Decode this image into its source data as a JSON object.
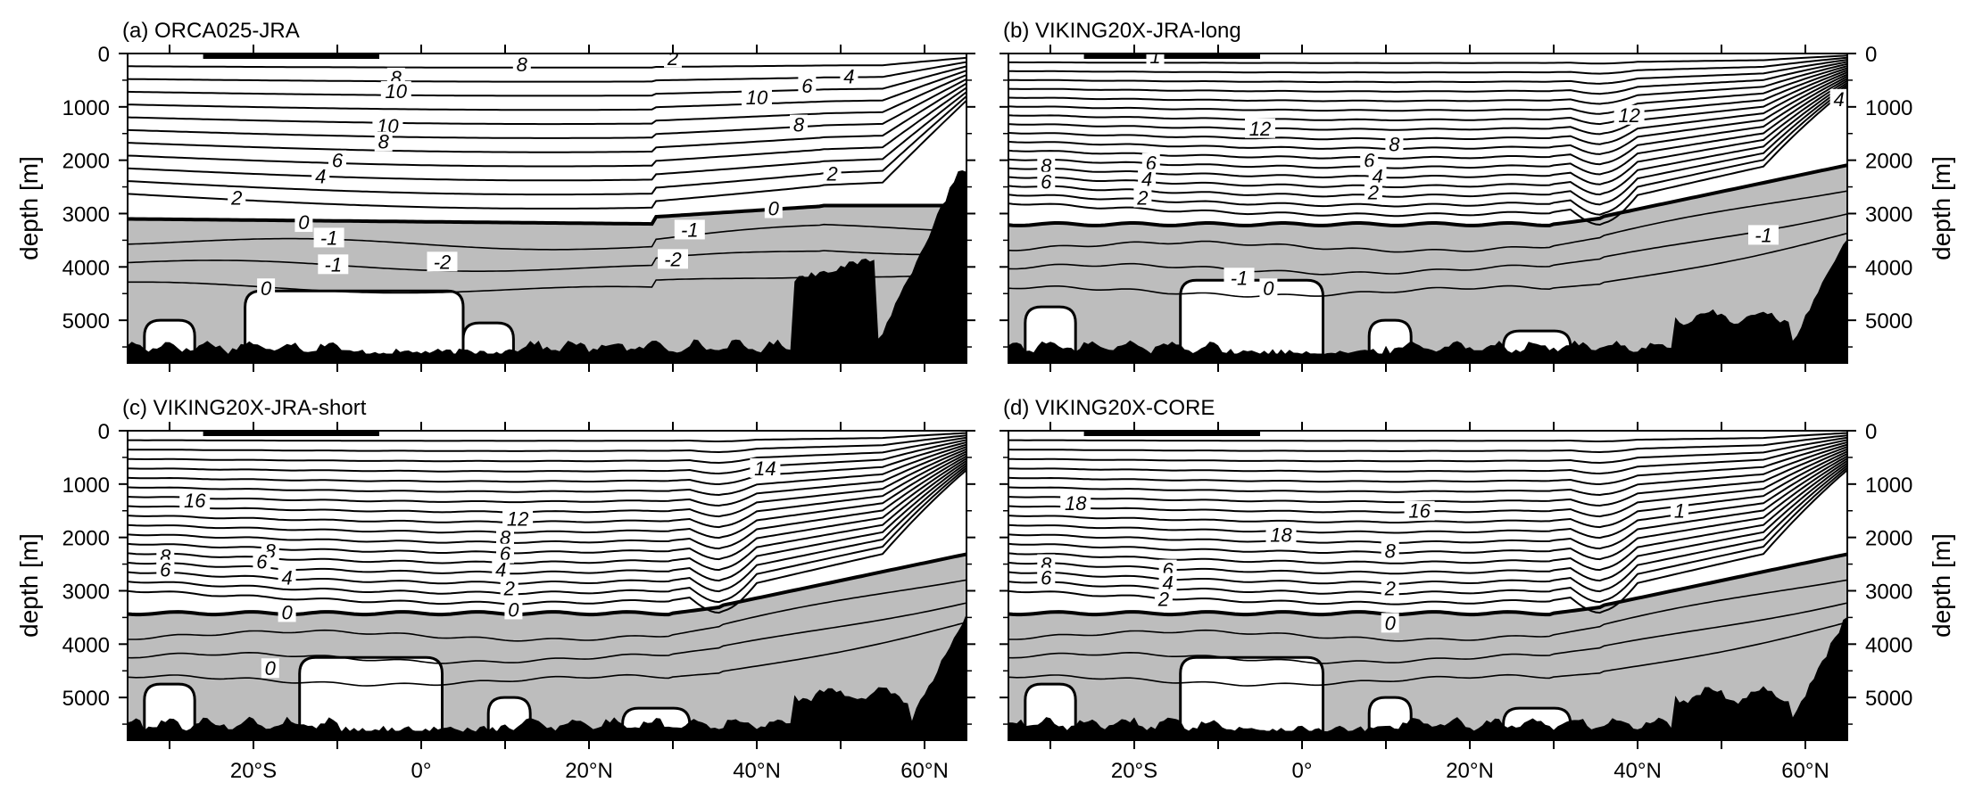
{
  "chart_data": [
    {
      "type": "contour",
      "title": "(a) ORCA025-JRA",
      "ylabel": "depth [m]",
      "ylabel_side": "left",
      "xlim": [
        -35,
        65
      ],
      "ylim": [
        5800,
        0
      ],
      "y_ticks": [
        0,
        1000,
        2000,
        3000,
        4000,
        5000
      ],
      "x_ticks": [],
      "x_tick_labels": [],
      "shaded_below_contour": 0,
      "contour_labels": [
        {
          "text": "2",
          "lat": 30,
          "depth": 80
        },
        {
          "text": "8",
          "lat": 12,
          "depth": 200
        },
        {
          "text": "8",
          "lat": -3,
          "depth": 450
        },
        {
          "text": "4",
          "lat": 51,
          "depth": 430
        },
        {
          "text": "6",
          "lat": 46,
          "depth": 600
        },
        {
          "text": "10",
          "lat": -3,
          "depth": 700
        },
        {
          "text": "10",
          "lat": 40,
          "depth": 820
        },
        {
          "text": "8",
          "lat": 45,
          "depth": 1330
        },
        {
          "text": "10",
          "lat": -4,
          "depth": 1350
        },
        {
          "text": "8",
          "lat": -4.5,
          "depth": 1650
        },
        {
          "text": "6",
          "lat": -10,
          "depth": 2000
        },
        {
          "text": "4",
          "lat": -12,
          "depth": 2300
        },
        {
          "text": "2",
          "lat": 49,
          "depth": 2250
        },
        {
          "text": "2",
          "lat": -22,
          "depth": 2700
        },
        {
          "text": "0",
          "lat": 42,
          "depth": 2900
        },
        {
          "text": "0",
          "lat": -14,
          "depth": 3160
        },
        {
          "text": "-1",
          "lat": -11,
          "depth": 3450
        },
        {
          "text": "-1",
          "lat": 32,
          "depth": 3300
        },
        {
          "text": "-2",
          "lat": 2.5,
          "depth": 3900
        },
        {
          "text": "-1",
          "lat": -10.5,
          "depth": 3950
        },
        {
          "text": "-2",
          "lat": 30,
          "depth": 3850
        },
        {
          "text": "0",
          "lat": -18.5,
          "depth": 4400
        }
      ]
    },
    {
      "type": "contour",
      "title": "(b) VIKING20X-JRA-long",
      "ylabel": "depth [m]",
      "ylabel_side": "right",
      "xlim": [
        -35,
        65
      ],
      "ylim": [
        5800,
        0
      ],
      "y_ticks": [
        0,
        1000,
        2000,
        3000,
        4000,
        5000
      ],
      "x_ticks": [],
      "x_tick_labels": [],
      "shaded_below_contour": 0,
      "contour_labels": [
        {
          "text": "1",
          "lat": -17.5,
          "depth": 50
        },
        {
          "text": "4",
          "lat": 64,
          "depth": 850
        },
        {
          "text": "12",
          "lat": -5,
          "depth": 1400
        },
        {
          "text": "12",
          "lat": 39,
          "depth": 1150
        },
        {
          "text": "8",
          "lat": 11,
          "depth": 1700
        },
        {
          "text": "8",
          "lat": -30.5,
          "depth": 2100
        },
        {
          "text": "6",
          "lat": -30.5,
          "depth": 2400
        },
        {
          "text": "6",
          "lat": -18,
          "depth": 2050
        },
        {
          "text": "6",
          "lat": 8,
          "depth": 2000
        },
        {
          "text": "4",
          "lat": -18.5,
          "depth": 2350
        },
        {
          "text": "4",
          "lat": 9,
          "depth": 2300
        },
        {
          "text": "2",
          "lat": -19,
          "depth": 2700
        },
        {
          "text": "2",
          "lat": 8.5,
          "depth": 2600
        },
        {
          "text": "-1",
          "lat": 55,
          "depth": 3400
        },
        {
          "text": "-1",
          "lat": -7.5,
          "depth": 4200
        },
        {
          "text": "0",
          "lat": -4,
          "depth": 4400
        }
      ]
    },
    {
      "type": "contour",
      "title": "(c) VIKING20X-JRA-short",
      "ylabel": "depth [m]",
      "ylabel_side": "left",
      "xlim": [
        -35,
        65
      ],
      "ylim": [
        5800,
        0
      ],
      "y_ticks": [
        0,
        1000,
        2000,
        3000,
        4000,
        5000
      ],
      "x_ticks": [
        -20,
        0,
        20,
        40,
        60
      ],
      "x_tick_labels": [
        "20°S",
        "0°",
        "20°N",
        "40°N",
        "60°N"
      ],
      "shaded_below_contour": 0,
      "contour_labels": [
        {
          "text": "14",
          "lat": 41,
          "depth": 700
        },
        {
          "text": "16",
          "lat": -27,
          "depth": 1300
        },
        {
          "text": "12",
          "lat": 11.5,
          "depth": 1650
        },
        {
          "text": "8",
          "lat": -30.5,
          "depth": 2350
        },
        {
          "text": "6",
          "lat": -30.5,
          "depth": 2600
        },
        {
          "text": "8",
          "lat": -18,
          "depth": 2250
        },
        {
          "text": "6",
          "lat": -19,
          "depth": 2450
        },
        {
          "text": "8",
          "lat": 10,
          "depth": 2000
        },
        {
          "text": "6",
          "lat": 10,
          "depth": 2300
        },
        {
          "text": "4",
          "lat": -16,
          "depth": 2750
        },
        {
          "text": "4",
          "lat": 9.5,
          "depth": 2600
        },
        {
          "text": "2",
          "lat": 10.5,
          "depth": 2950
        },
        {
          "text": "0",
          "lat": -16,
          "depth": 3400
        },
        {
          "text": "0",
          "lat": 11,
          "depth": 3350
        },
        {
          "text": "0",
          "lat": -18,
          "depth": 4450
        }
      ]
    },
    {
      "type": "contour",
      "title": "(d) VIKING20X-CORE",
      "ylabel": "depth [m]",
      "ylabel_side": "right",
      "xlim": [
        -35,
        65
      ],
      "ylim": [
        5800,
        0
      ],
      "y_ticks": [
        0,
        1000,
        2000,
        3000,
        4000,
        5000
      ],
      "x_ticks": [
        -20,
        0,
        20,
        40,
        60
      ],
      "x_tick_labels": [
        "20°S",
        "0°",
        "20°N",
        "40°N",
        "60°N"
      ],
      "shaded_below_contour": 0,
      "contour_labels": [
        {
          "text": "18",
          "lat": -27,
          "depth": 1350
        },
        {
          "text": "18",
          "lat": -2.5,
          "depth": 1950
        },
        {
          "text": "16",
          "lat": 14,
          "depth": 1500
        },
        {
          "text": "8",
          "lat": -30.5,
          "depth": 2500
        },
        {
          "text": "6",
          "lat": -30.5,
          "depth": 2750
        },
        {
          "text": "8",
          "lat": 10.5,
          "depth": 2250
        },
        {
          "text": "6",
          "lat": -16,
          "depth": 2600
        },
        {
          "text": "4",
          "lat": -16,
          "depth": 2850
        },
        {
          "text": "2",
          "lat": -16.5,
          "depth": 3150
        },
        {
          "text": "2",
          "lat": 10.5,
          "depth": 2950
        },
        {
          "text": "0",
          "lat": 10.5,
          "depth": 3600
        },
        {
          "text": "1",
          "lat": 45,
          "depth": 1500
        }
      ]
    }
  ]
}
